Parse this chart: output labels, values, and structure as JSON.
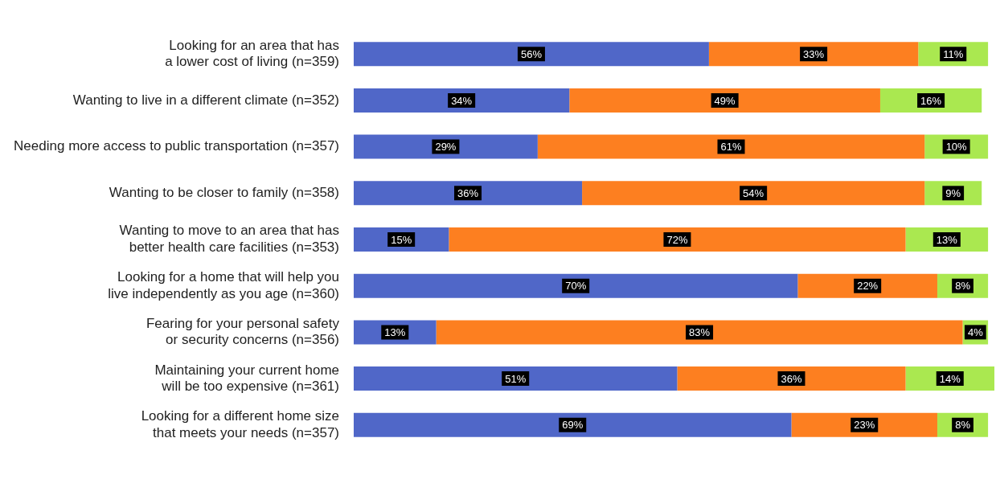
{
  "chart_data": {
    "type": "bar",
    "orientation": "horizontal",
    "stacked": true,
    "legend": false,
    "grid": false,
    "tick_labels": "y",
    "categories": [
      "Looking for an area that has a lower cost of living (n=359)",
      "Wanting to live in a different climate (n=352)",
      "Needing more access to public transportation (n=357)",
      "Wanting to be closer to family (n=358)",
      "Wanting to move to an area that has better health care facilities (n=353)",
      "Looking for a home that will help you live independently as you age (n=360)",
      "Fearing for your personal safety or security concerns (n=356)",
      "Maintaining your current home will be too expensive (n=361)",
      "Looking for a different home size that meets your needs (n=357)"
    ],
    "series": [
      {
        "color": "#5067c8",
        "values": [
          56,
          34,
          29,
          36,
          15,
          70,
          13,
          51,
          69
        ],
        "value_labels": [
          "56%",
          "34%",
          "29%",
          "36%",
          "15%",
          "70%",
          "13%",
          "51%",
          "69%"
        ]
      },
      {
        "color": "#fd7f20",
        "values": [
          33,
          49,
          61,
          54,
          72,
          22,
          83,
          36,
          23
        ],
        "value_labels": [
          "33%",
          "49%",
          "61%",
          "54%",
          "72%",
          "22%",
          "83%",
          "36%",
          "23%"
        ]
      },
      {
        "color": "#aae850",
        "values": [
          11,
          16,
          10,
          9,
          13,
          8,
          4,
          14,
          8
        ],
        "value_labels": [
          "11%",
          "16%",
          "10%",
          "9%",
          "13%",
          "8%",
          "4%",
          "14%",
          "8%"
        ]
      }
    ]
  }
}
